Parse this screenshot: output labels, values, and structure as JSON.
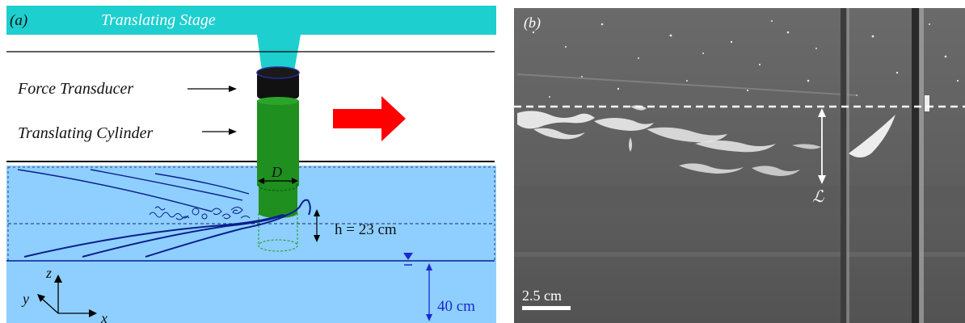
{
  "panel_a": {
    "label": "(a)",
    "stage_label": "Translating Stage",
    "force_label": "Force Transducer",
    "cylinder_label": "Translating Cylinder",
    "diameter_label": "D",
    "h_label": "h = 23 cm",
    "depth_label": "40 cm",
    "axis_z": "z",
    "axis_y": "y",
    "axis_x": "x",
    "colors": {
      "stage": "#1ecfcf",
      "water": "#8ecfff",
      "cylinder": "#1f8f1f",
      "transducer": "#111111",
      "arrow": "#ff0000",
      "wake": "#0b1f8a"
    }
  },
  "panel_b": {
    "label": "(b)",
    "length_label": "ℒ",
    "scale_label": "2.5 cm"
  }
}
